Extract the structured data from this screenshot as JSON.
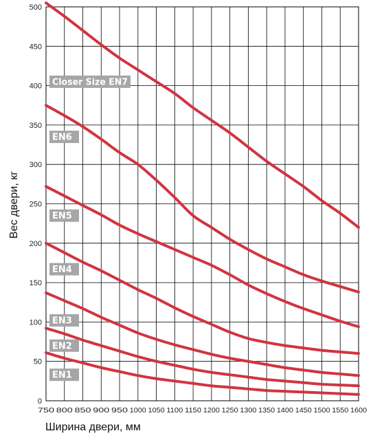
{
  "chart_data": {
    "type": "line",
    "title": "",
    "xlabel": "Ширина двери, мм",
    "ylabel": "Вес двери, кг",
    "xlim": [
      750,
      1600
    ],
    "ylim": [
      0,
      500
    ],
    "x_ticks": [
      750,
      800,
      850,
      900,
      950,
      1000,
      1050,
      1100,
      1150,
      1200,
      1250,
      1300,
      1350,
      1400,
      1450,
      1500,
      1550,
      1600
    ],
    "y_ticks": [
      0,
      50,
      100,
      150,
      200,
      250,
      300,
      350,
      400,
      450,
      500
    ],
    "grid": true,
    "line_color": "#d1343f",
    "label_bg_color": "#a6a6a6",
    "series": [
      {
        "label": "Closer Size EN7",
        "label_value": 405,
        "points": [
          [
            750,
            505
          ],
          [
            800,
            488
          ],
          [
            850,
            470
          ],
          [
            900,
            452
          ],
          [
            950,
            435
          ],
          [
            1000,
            420
          ],
          [
            1050,
            405
          ],
          [
            1100,
            390
          ],
          [
            1150,
            372
          ],
          [
            1200,
            356
          ],
          [
            1250,
            340
          ],
          [
            1300,
            322
          ],
          [
            1350,
            304
          ],
          [
            1400,
            288
          ],
          [
            1450,
            272
          ],
          [
            1500,
            254
          ],
          [
            1550,
            238
          ],
          [
            1600,
            220
          ]
        ]
      },
      {
        "label": "EN6",
        "label_value": 335,
        "points": [
          [
            750,
            375
          ],
          [
            800,
            362
          ],
          [
            850,
            348
          ],
          [
            900,
            332
          ],
          [
            950,
            315
          ],
          [
            1000,
            300
          ],
          [
            1050,
            280
          ],
          [
            1100,
            258
          ],
          [
            1150,
            235
          ],
          [
            1200,
            220
          ],
          [
            1250,
            205
          ],
          [
            1300,
            192
          ],
          [
            1350,
            180
          ],
          [
            1400,
            170
          ],
          [
            1450,
            160
          ],
          [
            1500,
            152
          ],
          [
            1550,
            145
          ],
          [
            1600,
            138
          ]
        ]
      },
      {
        "label": "EN5",
        "label_value": 235,
        "points": [
          [
            750,
            272
          ],
          [
            800,
            260
          ],
          [
            850,
            248
          ],
          [
            900,
            236
          ],
          [
            950,
            223
          ],
          [
            1000,
            212
          ],
          [
            1050,
            202
          ],
          [
            1100,
            192
          ],
          [
            1150,
            182
          ],
          [
            1200,
            172
          ],
          [
            1250,
            160
          ],
          [
            1300,
            147
          ],
          [
            1350,
            136
          ],
          [
            1400,
            126
          ],
          [
            1450,
            117
          ],
          [
            1500,
            109
          ],
          [
            1550,
            101
          ],
          [
            1600,
            94
          ]
        ]
      },
      {
        "label": "EN4",
        "label_value": 167,
        "points": [
          [
            750,
            200
          ],
          [
            800,
            188
          ],
          [
            850,
            176
          ],
          [
            900,
            165
          ],
          [
            950,
            153
          ],
          [
            1000,
            141
          ],
          [
            1050,
            130
          ],
          [
            1100,
            118
          ],
          [
            1150,
            107
          ],
          [
            1200,
            97
          ],
          [
            1250,
            87
          ],
          [
            1300,
            79
          ],
          [
            1350,
            74
          ],
          [
            1400,
            70
          ],
          [
            1450,
            67
          ],
          [
            1500,
            64
          ],
          [
            1550,
            62
          ],
          [
            1600,
            60
          ]
        ]
      },
      {
        "label": "EN3",
        "label_value": 102,
        "points": [
          [
            750,
            137
          ],
          [
            800,
            127
          ],
          [
            850,
            117
          ],
          [
            900,
            106
          ],
          [
            950,
            96
          ],
          [
            1000,
            86
          ],
          [
            1050,
            78
          ],
          [
            1100,
            71
          ],
          [
            1150,
            65
          ],
          [
            1200,
            59
          ],
          [
            1250,
            54
          ],
          [
            1300,
            50
          ],
          [
            1350,
            46
          ],
          [
            1400,
            42
          ],
          [
            1450,
            39
          ],
          [
            1500,
            36
          ],
          [
            1550,
            34
          ],
          [
            1600,
            32
          ]
        ]
      },
      {
        "label": "EN2",
        "label_value": 70,
        "points": [
          [
            750,
            92
          ],
          [
            800,
            85
          ],
          [
            850,
            77
          ],
          [
            900,
            70
          ],
          [
            950,
            63
          ],
          [
            1000,
            56
          ],
          [
            1050,
            50
          ],
          [
            1100,
            45
          ],
          [
            1150,
            40
          ],
          [
            1200,
            36
          ],
          [
            1250,
            33
          ],
          [
            1300,
            30
          ],
          [
            1350,
            27
          ],
          [
            1400,
            25
          ],
          [
            1450,
            23
          ],
          [
            1500,
            21
          ],
          [
            1550,
            20
          ],
          [
            1600,
            19
          ]
        ]
      },
      {
        "label": "EN1",
        "label_value": 33,
        "points": [
          [
            750,
            61
          ],
          [
            800,
            54
          ],
          [
            850,
            48
          ],
          [
            900,
            42
          ],
          [
            950,
            37
          ],
          [
            1000,
            32
          ],
          [
            1050,
            28
          ],
          [
            1100,
            25
          ],
          [
            1150,
            22
          ],
          [
            1200,
            19
          ],
          [
            1250,
            17
          ],
          [
            1300,
            15
          ],
          [
            1350,
            13
          ],
          [
            1400,
            12
          ],
          [
            1450,
            11
          ],
          [
            1500,
            10
          ],
          [
            1550,
            9
          ],
          [
            1600,
            8
          ]
        ]
      }
    ]
  }
}
